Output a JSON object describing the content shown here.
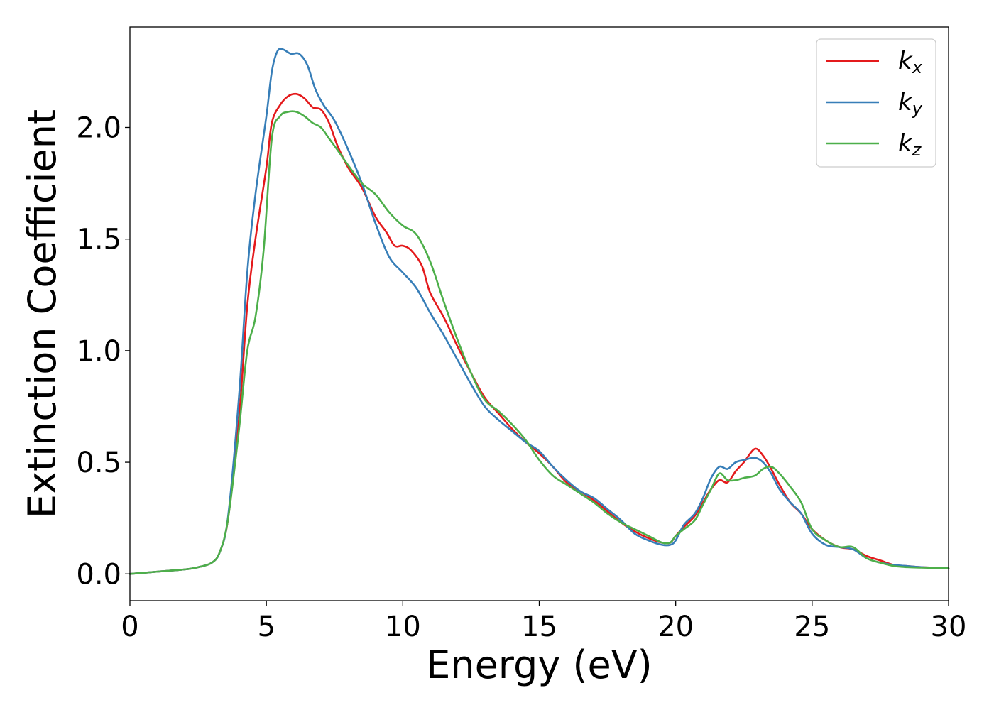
{
  "chart_data": {
    "type": "line",
    "title": "",
    "xlabel": "Energy (eV)",
    "ylabel": "Extinction Coefficient",
    "xlim": [
      0,
      30
    ],
    "ylim": [
      -0.12,
      2.45
    ],
    "xticks": [
      0,
      5,
      10,
      15,
      20,
      25,
      30
    ],
    "xtick_labels": [
      "0",
      "5",
      "10",
      "15",
      "20",
      "25",
      "30"
    ],
    "yticks": [
      0.0,
      0.5,
      1.0,
      1.5,
      2.0
    ],
    "ytick_labels": [
      "0.0",
      "0.5",
      "1.0",
      "1.5",
      "2.0"
    ],
    "grid": false,
    "legend_position": "top-right",
    "series": [
      {
        "name": "k",
        "subscript": "x",
        "color": "#e41a1c",
        "x": [
          0,
          1,
          2,
          2.5,
          3,
          3.3,
          3.6,
          4,
          4.3,
          4.6,
          5,
          5.2,
          5.5,
          5.8,
          6.1,
          6.4,
          6.7,
          7,
          7.3,
          7.6,
          8,
          8.5,
          9,
          9.4,
          9.7,
          10,
          10.3,
          10.7,
          11,
          11.5,
          12,
          12.5,
          13,
          13.5,
          14,
          14.5,
          15,
          15.5,
          16,
          16.5,
          17,
          17.5,
          18,
          18.5,
          19,
          19.5,
          19.8,
          20,
          20.3,
          20.7,
          21,
          21.3,
          21.6,
          21.9,
          22.2,
          22.5,
          22.9,
          23.2,
          23.5,
          23.8,
          24.2,
          24.6,
          25,
          25.5,
          26,
          26.5,
          27,
          27.5,
          28,
          28.5,
          29,
          30
        ],
        "y": [
          0.0,
          0.01,
          0.02,
          0.03,
          0.05,
          0.1,
          0.25,
          0.7,
          1.2,
          1.5,
          1.82,
          2.02,
          2.1,
          2.14,
          2.15,
          2.13,
          2.09,
          2.08,
          2.02,
          1.92,
          1.82,
          1.73,
          1.6,
          1.53,
          1.47,
          1.47,
          1.45,
          1.38,
          1.26,
          1.15,
          1.02,
          0.9,
          0.79,
          0.72,
          0.65,
          0.59,
          0.54,
          0.48,
          0.41,
          0.37,
          0.33,
          0.28,
          0.23,
          0.19,
          0.16,
          0.14,
          0.14,
          0.17,
          0.21,
          0.26,
          0.32,
          0.38,
          0.42,
          0.41,
          0.46,
          0.5,
          0.56,
          0.53,
          0.47,
          0.4,
          0.32,
          0.27,
          0.2,
          0.15,
          0.12,
          0.11,
          0.08,
          0.06,
          0.04,
          0.035,
          0.03,
          0.025
        ]
      },
      {
        "name": "k",
        "subscript": "y",
        "color": "#377eb8",
        "x": [
          0,
          1,
          2,
          2.5,
          3,
          3.3,
          3.6,
          4,
          4.3,
          4.6,
          5,
          5.2,
          5.4,
          5.6,
          5.9,
          6.2,
          6.5,
          6.8,
          7.1,
          7.5,
          8,
          8.5,
          9,
          9.5,
          10,
          10.5,
          11,
          11.5,
          12,
          12.5,
          13,
          13.5,
          14,
          14.5,
          15,
          15.5,
          16,
          16.5,
          17,
          17.5,
          18,
          18.5,
          19,
          19.5,
          19.8,
          20,
          20.3,
          20.7,
          21,
          21.3,
          21.6,
          21.9,
          22.2,
          22.5,
          22.9,
          23.2,
          23.5,
          23.8,
          24.2,
          24.6,
          25,
          25.5,
          26,
          26.5,
          27,
          27.5,
          28,
          28.5,
          29,
          30
        ],
        "y": [
          0.0,
          0.01,
          0.02,
          0.03,
          0.05,
          0.1,
          0.26,
          0.8,
          1.35,
          1.7,
          2.05,
          2.25,
          2.34,
          2.35,
          2.33,
          2.33,
          2.28,
          2.17,
          2.1,
          2.03,
          1.9,
          1.75,
          1.57,
          1.42,
          1.35,
          1.28,
          1.17,
          1.07,
          0.96,
          0.85,
          0.75,
          0.69,
          0.64,
          0.59,
          0.55,
          0.48,
          0.42,
          0.37,
          0.34,
          0.29,
          0.24,
          0.18,
          0.15,
          0.13,
          0.13,
          0.15,
          0.22,
          0.27,
          0.34,
          0.43,
          0.48,
          0.47,
          0.5,
          0.51,
          0.52,
          0.5,
          0.45,
          0.38,
          0.32,
          0.27,
          0.18,
          0.13,
          0.12,
          0.11,
          0.07,
          0.05,
          0.04,
          0.035,
          0.03,
          0.025
        ]
      },
      {
        "name": "k",
        "subscript": "z",
        "color": "#4daf4a",
        "x": [
          0,
          1,
          2,
          2.5,
          3,
          3.3,
          3.6,
          4,
          4.3,
          4.6,
          4.9,
          5.2,
          5.5,
          5.8,
          6.1,
          6.4,
          6.7,
          7,
          7.3,
          7.6,
          8,
          8.5,
          9,
          9.5,
          10,
          10.5,
          11,
          11.5,
          12,
          12.5,
          13,
          13.5,
          14,
          14.5,
          15,
          15.5,
          16,
          16.5,
          17,
          17.5,
          18,
          18.5,
          19,
          19.5,
          19.8,
          20,
          20.3,
          20.7,
          21,
          21.3,
          21.6,
          21.9,
          22.2,
          22.5,
          22.9,
          23.2,
          23.5,
          23.8,
          24.2,
          24.6,
          25,
          25.5,
          26,
          26.5,
          27,
          27.5,
          28,
          28.5,
          29,
          30
        ],
        "y": [
          0.0,
          0.01,
          0.02,
          0.03,
          0.05,
          0.1,
          0.25,
          0.65,
          1.0,
          1.15,
          1.45,
          1.95,
          2.05,
          2.07,
          2.07,
          2.05,
          2.02,
          2.0,
          1.95,
          1.9,
          1.83,
          1.75,
          1.7,
          1.62,
          1.56,
          1.52,
          1.4,
          1.22,
          1.05,
          0.9,
          0.78,
          0.73,
          0.67,
          0.6,
          0.51,
          0.44,
          0.4,
          0.36,
          0.32,
          0.27,
          0.23,
          0.2,
          0.17,
          0.14,
          0.14,
          0.17,
          0.2,
          0.24,
          0.31,
          0.38,
          0.45,
          0.42,
          0.42,
          0.43,
          0.44,
          0.47,
          0.48,
          0.45,
          0.39,
          0.32,
          0.2,
          0.15,
          0.12,
          0.12,
          0.07,
          0.05,
          0.035,
          0.03,
          0.028,
          0.025
        ]
      }
    ]
  }
}
